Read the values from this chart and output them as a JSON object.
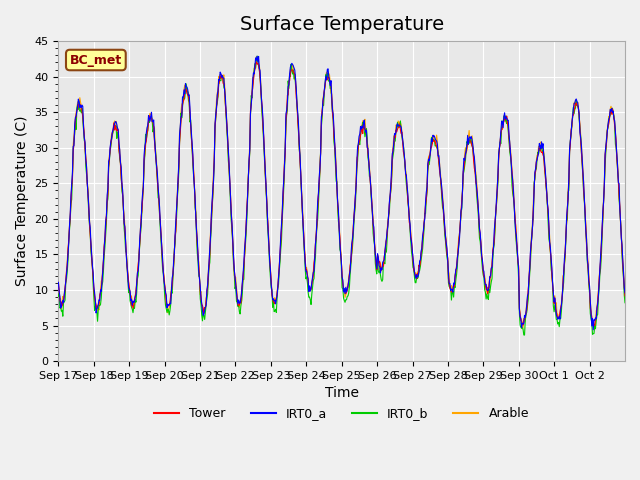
{
  "title": "Surface Temperature",
  "xlabel": "Time",
  "ylabel": "Surface Temperature (C)",
  "ylim": [
    0,
    45
  ],
  "yticks": [
    0,
    5,
    10,
    15,
    20,
    25,
    30,
    35,
    40,
    45
  ],
  "x_labels": [
    "Sep 17",
    "Sep 18",
    "Sep 19",
    "Sep 20",
    "Sep 21",
    "Sep 22",
    "Sep 23",
    "Sep 24",
    "Sep 25",
    "Sep 26",
    "Sep 27",
    "Sep 28",
    "Sep 29",
    "Sep 30",
    "Oct 1",
    "Oct 2"
  ],
  "annotation_text": "BC_met",
  "annotation_color": "#8B0000",
  "annotation_bg": "#FFFF99",
  "annotation_border": "#8B4513",
  "series_colors": {
    "Tower": "#FF0000",
    "IRT0_a": "#0000FF",
    "IRT0_b": "#00CC00",
    "Arable": "#FFA500"
  },
  "fig_bg": "#F0F0F0",
  "plot_bg": "#E8E8E8",
  "grid_color": "#FFFFFF",
  "title_fontsize": 14,
  "label_fontsize": 10,
  "tick_fontsize": 8
}
